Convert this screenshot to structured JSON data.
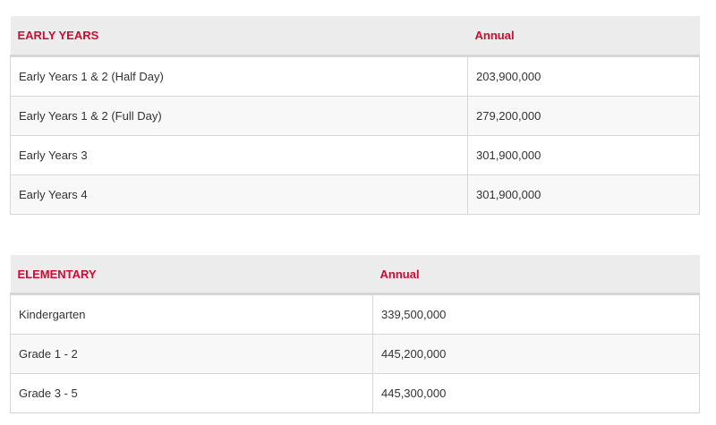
{
  "colors": {
    "header_text": "#cc0c33",
    "header_bg": "#ececec",
    "border": "#d7d7d7",
    "cell_text": "#333333"
  },
  "early_years": {
    "section_label": "EARLY YEARS",
    "annual_label": "Annual",
    "rows": [
      {
        "grade": "Early Years 1 & 2 (Half Day)",
        "annual": "203,900,000"
      },
      {
        "grade": "Early Years 1 & 2 (Full Day)",
        "annual": "279,200,000"
      },
      {
        "grade": "Early Years 3",
        "annual": "301,900,000"
      },
      {
        "grade": "Early Years 4",
        "annual": "301,900,000"
      }
    ]
  },
  "elementary": {
    "section_label": "ELEMENTARY",
    "annual_label": "Annual",
    "rows": [
      {
        "grade": "Kindergarten",
        "annual": "339,500,000"
      },
      {
        "grade": "Grade 1 - 2",
        "annual": "445,200,000"
      },
      {
        "grade": "Grade 3 - 5",
        "annual": "445,300,000"
      }
    ]
  }
}
